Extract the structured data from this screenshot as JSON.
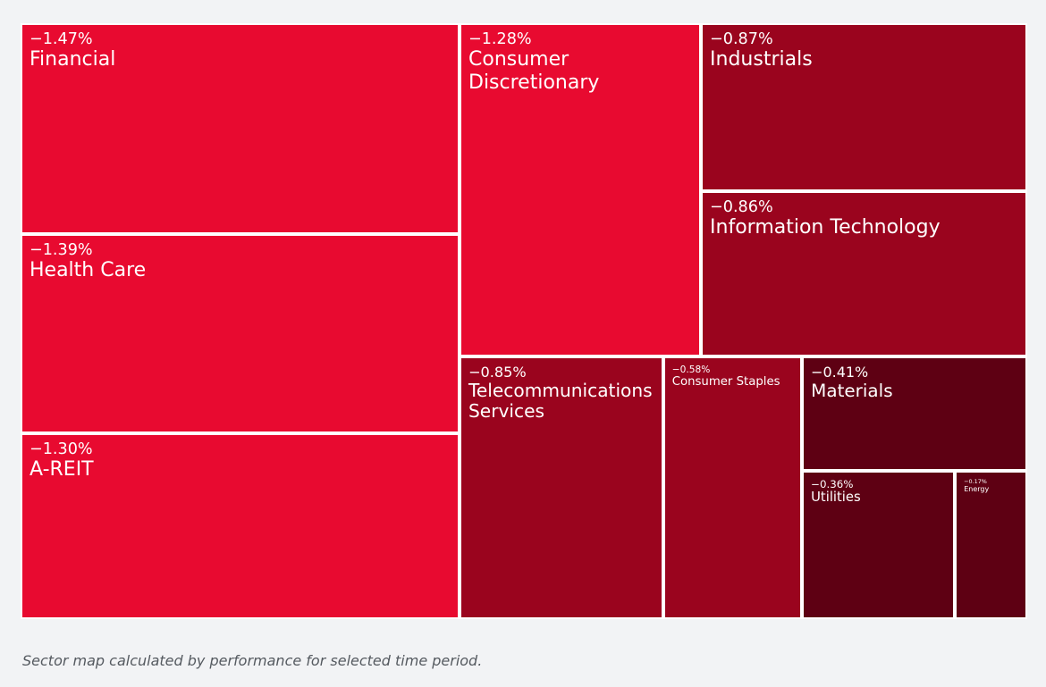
{
  "chart_data": {
    "type": "treemap",
    "categories": [
      "Financial",
      "Health Care",
      "A-REIT",
      "Consumer Discretionary",
      "Industrials",
      "Information Technology",
      "Telecommunications Services",
      "Consumer Staples",
      "Materials",
      "Utilities",
      "Energy"
    ],
    "values": [
      -1.47,
      -1.39,
      -1.3,
      -1.28,
      -0.87,
      -0.86,
      -0.85,
      -0.58,
      -0.41,
      -0.36,
      -0.17
    ],
    "value_labels": [
      "−1.47%",
      "−1.39%",
      "−1.30%",
      "−1.28%",
      "−0.87%",
      "−0.86%",
      "−0.85%",
      "−0.58%",
      "−0.41%",
      "−0.36%",
      "−0.17%"
    ],
    "colors": [
      "#e80a30",
      "#e80a30",
      "#e80a30",
      "#e80a30",
      "#9a041e",
      "#9a041e",
      "#9a041e",
      "#9a041e",
      "#5e0013",
      "#5e0013",
      "#5e0013"
    ],
    "caption": "Sector map calculated by performance for selected time period."
  }
}
